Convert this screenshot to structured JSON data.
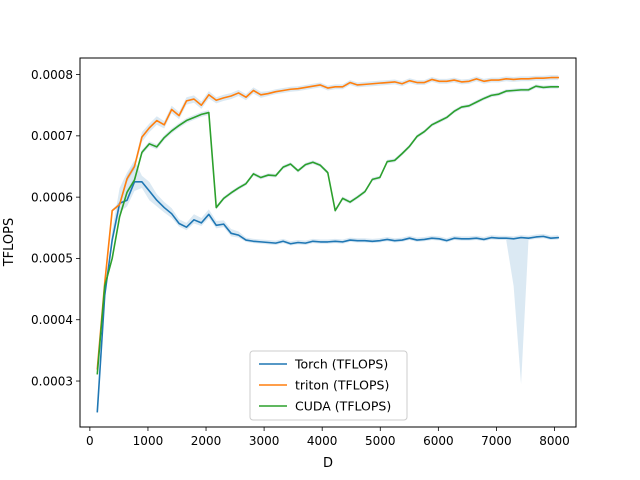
{
  "chart_data": {
    "type": "line",
    "xlabel": "D",
    "ylabel": "TFLOPS",
    "xlim": [
      -170,
      8370
    ],
    "ylim": [
      0.000225,
      0.000827
    ],
    "xticks": [
      0,
      1000,
      2000,
      3000,
      4000,
      5000,
      6000,
      7000,
      8000
    ],
    "xtick_labels": [
      "0",
      "1000",
      "2000",
      "3000",
      "4000",
      "5000",
      "6000",
      "7000",
      "8000"
    ],
    "yticks": [
      0.0003,
      0.0004,
      0.0005,
      0.0006,
      0.0007,
      0.0008
    ],
    "ytick_labels": [
      "0.0003",
      "0.0004",
      "0.0005",
      "0.0006",
      "0.0007",
      "0.0008"
    ],
    "grid": false,
    "legend_position": "lower-center",
    "series": [
      {
        "name": "Torch (TFLOPS)",
        "color": "#1f77b4",
        "band_color": "#1f77b4",
        "x": [
          128,
          256,
          384,
          512,
          640,
          768,
          896,
          1024,
          1152,
          1280,
          1408,
          1536,
          1664,
          1792,
          1920,
          2048,
          2176,
          2304,
          2432,
          2560,
          2688,
          2816,
          2944,
          3072,
          3200,
          3328,
          3456,
          3584,
          3712,
          3840,
          3968,
          4096,
          4224,
          4352,
          4480,
          4608,
          4736,
          4864,
          4992,
          5120,
          5248,
          5376,
          5504,
          5632,
          5760,
          5888,
          6016,
          6144,
          6272,
          6400,
          6528,
          6656,
          6784,
          6912,
          7040,
          7168,
          7296,
          7424,
          7552,
          7680,
          7808,
          7936,
          8064
        ],
        "y": [
          0.00025,
          0.00044,
          0.00053,
          0.00059,
          0.000595,
          0.000625,
          0.000625,
          0.00061,
          0.000595,
          0.000583,
          0.000573,
          0.000557,
          0.000551,
          0.000563,
          0.000558,
          0.000572,
          0.000554,
          0.000556,
          0.000541,
          0.000538,
          0.00053,
          0.000528,
          0.000527,
          0.000526,
          0.000525,
          0.000528,
          0.000524,
          0.000526,
          0.000525,
          0.000528,
          0.000527,
          0.000527,
          0.000528,
          0.000527,
          0.00053,
          0.000529,
          0.000529,
          0.000528,
          0.000529,
          0.000531,
          0.000529,
          0.00053,
          0.000533,
          0.00053,
          0.000531,
          0.000533,
          0.000532,
          0.000529,
          0.000533,
          0.000532,
          0.000532,
          0.000533,
          0.000531,
          0.000534,
          0.000533,
          0.000533,
          0.000532,
          0.000534,
          0.000533,
          0.000535,
          0.000536,
          0.000533,
          0.000534
        ],
        "band_low": [
          0.00025,
          0.00044,
          0.000525,
          0.000575,
          0.000585,
          0.00061,
          0.000615,
          0.000595,
          0.000585,
          0.000575,
          0.000566,
          0.000552,
          0.000546,
          0.000557,
          0.000553,
          0.000566,
          0.000549,
          0.000551,
          0.000536,
          0.000534,
          0.000527,
          0.000525,
          0.000524,
          0.000523,
          0.000522,
          0.000525,
          0.000521,
          0.000523,
          0.000522,
          0.000525,
          0.000524,
          0.000524,
          0.000525,
          0.000524,
          0.000527,
          0.000526,
          0.000526,
          0.000525,
          0.000526,
          0.000528,
          0.000526,
          0.000527,
          0.00053,
          0.000527,
          0.000528,
          0.00053,
          0.000529,
          0.000526,
          0.00053,
          0.000529,
          0.000529,
          0.00053,
          0.000528,
          0.000531,
          0.00053,
          0.00053,
          0.000455,
          0.000295,
          0.00053,
          0.000532,
          0.000533,
          0.00053,
          0.000531
        ],
        "band_high": [
          0.00025,
          0.00044,
          0.000545,
          0.000615,
          0.00064,
          0.00066,
          0.000635,
          0.000625,
          0.000605,
          0.000592,
          0.000582,
          0.000564,
          0.000558,
          0.000572,
          0.000566,
          0.00058,
          0.000561,
          0.000562,
          0.000548,
          0.000544,
          0.000534,
          0.000532,
          0.000531,
          0.00053,
          0.000529,
          0.000532,
          0.000528,
          0.00053,
          0.000529,
          0.000532,
          0.000531,
          0.000531,
          0.000532,
          0.000531,
          0.000534,
          0.000533,
          0.000533,
          0.000532,
          0.000533,
          0.000535,
          0.000533,
          0.000534,
          0.000537,
          0.000534,
          0.000535,
          0.000537,
          0.000536,
          0.000533,
          0.000537,
          0.000536,
          0.000536,
          0.000537,
          0.000535,
          0.000538,
          0.000537,
          0.000537,
          0.000536,
          0.000538,
          0.000537,
          0.000539,
          0.00054,
          0.000537,
          0.000538
        ]
      },
      {
        "name": "triton (TFLOPS)",
        "color": "#ff7f0e",
        "band_color": "#1f77b4",
        "x": [
          128,
          256,
          384,
          512,
          640,
          768,
          896,
          1024,
          1152,
          1280,
          1408,
          1536,
          1664,
          1792,
          1920,
          2048,
          2176,
          2304,
          2432,
          2560,
          2688,
          2816,
          2944,
          3072,
          3200,
          3328,
          3456,
          3584,
          3712,
          3840,
          3968,
          4096,
          4224,
          4352,
          4480,
          4608,
          4736,
          4864,
          4992,
          5120,
          5248,
          5376,
          5504,
          5632,
          5760,
          5888,
          6016,
          6144,
          6272,
          6400,
          6528,
          6656,
          6784,
          6912,
          7040,
          7168,
          7296,
          7424,
          7552,
          7680,
          7808,
          7936,
          8064
        ],
        "y": [
          0.00032,
          0.00046,
          0.000578,
          0.000588,
          0.00063,
          0.00065,
          0.000698,
          0.000713,
          0.000725,
          0.000718,
          0.000743,
          0.000733,
          0.000757,
          0.00076,
          0.00075,
          0.000767,
          0.000758,
          0.000762,
          0.000765,
          0.00077,
          0.000763,
          0.000774,
          0.000767,
          0.000769,
          0.000772,
          0.000774,
          0.000776,
          0.000777,
          0.000779,
          0.000781,
          0.000783,
          0.000778,
          0.00078,
          0.00078,
          0.000787,
          0.000783,
          0.000784,
          0.000785,
          0.000786,
          0.000787,
          0.000788,
          0.000785,
          0.00079,
          0.000787,
          0.000787,
          0.000792,
          0.000789,
          0.000789,
          0.000791,
          0.000788,
          0.000789,
          0.000793,
          0.000789,
          0.000791,
          0.000791,
          0.000793,
          0.000792,
          0.000793,
          0.000793,
          0.000794,
          0.000794,
          0.000795,
          0.000795
        ],
        "band_low": [
          0.00032,
          0.00046,
          0.000576,
          0.000585,
          0.000625,
          0.000645,
          0.00069,
          0.000706,
          0.000718,
          0.000712,
          0.000737,
          0.000727,
          0.000751,
          0.000754,
          0.000744,
          0.000761,
          0.000753,
          0.000757,
          0.00076,
          0.000765,
          0.000758,
          0.000769,
          0.000762,
          0.000765,
          0.000768,
          0.00077,
          0.000772,
          0.000773,
          0.000775,
          0.000777,
          0.000779,
          0.000774,
          0.000776,
          0.000776,
          0.000783,
          0.000779,
          0.00078,
          0.000781,
          0.000782,
          0.000783,
          0.000784,
          0.000781,
          0.000786,
          0.000783,
          0.000783,
          0.000788,
          0.000785,
          0.000785,
          0.000787,
          0.000784,
          0.000785,
          0.000789,
          0.000785,
          0.000787,
          0.000787,
          0.000789,
          0.000788,
          0.000789,
          0.000789,
          0.00079,
          0.00079,
          0.000791,
          0.000791
        ],
        "band_high": [
          0.00032,
          0.00046,
          0.00058,
          0.000592,
          0.000635,
          0.000655,
          0.000706,
          0.00072,
          0.000732,
          0.000724,
          0.000749,
          0.000739,
          0.000763,
          0.000766,
          0.000756,
          0.000773,
          0.000763,
          0.000767,
          0.00077,
          0.000775,
          0.000768,
          0.000779,
          0.000772,
          0.000773,
          0.000776,
          0.000778,
          0.00078,
          0.000781,
          0.000783,
          0.000785,
          0.000787,
          0.000782,
          0.000784,
          0.000784,
          0.000791,
          0.000787,
          0.000788,
          0.000789,
          0.00079,
          0.000791,
          0.000792,
          0.000789,
          0.000794,
          0.000791,
          0.000791,
          0.000796,
          0.000793,
          0.000793,
          0.000795,
          0.000792,
          0.000793,
          0.000797,
          0.000793,
          0.000795,
          0.000795,
          0.000797,
          0.000796,
          0.000797,
          0.000797,
          0.000798,
          0.000798,
          0.000799,
          0.000799
        ]
      },
      {
        "name": "CUDA (TFLOPS)",
        "color": "#2ca02c",
        "band_color": "#1f77b4",
        "x": [
          128,
          256,
          384,
          512,
          640,
          768,
          896,
          1024,
          1152,
          1280,
          1408,
          1536,
          1664,
          1792,
          1920,
          2048,
          2176,
          2304,
          2432,
          2560,
          2688,
          2816,
          2944,
          3072,
          3200,
          3328,
          3456,
          3584,
          3712,
          3840,
          3968,
          4096,
          4224,
          4352,
          4480,
          4608,
          4736,
          4864,
          4992,
          5120,
          5248,
          5376,
          5504,
          5632,
          5760,
          5888,
          6016,
          6144,
          6272,
          6400,
          6528,
          6656,
          6784,
          6912,
          7040,
          7168,
          7296,
          7424,
          7552,
          7680,
          7808,
          7936,
          8064
        ],
        "y": [
          0.000312,
          0.000455,
          0.0005,
          0.000568,
          0.000608,
          0.000628,
          0.000673,
          0.000687,
          0.000682,
          0.000697,
          0.000708,
          0.000717,
          0.000725,
          0.00073,
          0.000735,
          0.000738,
          0.000583,
          0.000598,
          0.000607,
          0.000615,
          0.000622,
          0.000638,
          0.000632,
          0.000636,
          0.000635,
          0.000649,
          0.000654,
          0.000643,
          0.000653,
          0.000657,
          0.000652,
          0.00064,
          0.000578,
          0.000598,
          0.000592,
          0.0006,
          0.000609,
          0.000629,
          0.000632,
          0.000658,
          0.00066,
          0.000671,
          0.000683,
          0.000699,
          0.000707,
          0.000718,
          0.000724,
          0.00073,
          0.00074,
          0.000747,
          0.000749,
          0.000755,
          0.000761,
          0.000766,
          0.000768,
          0.000773,
          0.000774,
          0.000775,
          0.000775,
          0.000781,
          0.000779,
          0.00078,
          0.00078
        ],
        "band_low": [
          0.000312,
          0.000455,
          0.000498,
          0.000565,
          0.000604,
          0.000624,
          0.000669,
          0.000683,
          0.000678,
          0.000693,
          0.000704,
          0.000713,
          0.000721,
          0.000726,
          0.000731,
          0.000734,
          0.00058,
          0.000595,
          0.000604,
          0.000612,
          0.000619,
          0.000635,
          0.000629,
          0.000633,
          0.000632,
          0.000646,
          0.000651,
          0.00064,
          0.00065,
          0.000654,
          0.000649,
          0.000637,
          0.000575,
          0.000595,
          0.000589,
          0.000597,
          0.000606,
          0.000626,
          0.000629,
          0.000655,
          0.000657,
          0.000668,
          0.00068,
          0.000696,
          0.000704,
          0.000715,
          0.000721,
          0.000727,
          0.000737,
          0.000744,
          0.000746,
          0.000752,
          0.000758,
          0.000763,
          0.000765,
          0.00077,
          0.000771,
          0.000772,
          0.000772,
          0.000778,
          0.000776,
          0.000777,
          0.000777
        ],
        "band_high": [
          0.000312,
          0.000455,
          0.000502,
          0.000571,
          0.000612,
          0.000632,
          0.000677,
          0.000691,
          0.000686,
          0.000701,
          0.000712,
          0.000721,
          0.000729,
          0.000734,
          0.000739,
          0.000742,
          0.000586,
          0.000601,
          0.00061,
          0.000618,
          0.000625,
          0.000641,
          0.000635,
          0.000639,
          0.000638,
          0.000652,
          0.000657,
          0.000646,
          0.000656,
          0.00066,
          0.000655,
          0.000643,
          0.000581,
          0.000601,
          0.000595,
          0.000603,
          0.000612,
          0.000632,
          0.000635,
          0.000661,
          0.000663,
          0.000674,
          0.000686,
          0.000702,
          0.00071,
          0.000721,
          0.000727,
          0.000733,
          0.000743,
          0.00075,
          0.000752,
          0.000758,
          0.000764,
          0.000769,
          0.000771,
          0.000776,
          0.000777,
          0.000778,
          0.000778,
          0.000784,
          0.000782,
          0.000783,
          0.000783
        ]
      }
    ]
  }
}
